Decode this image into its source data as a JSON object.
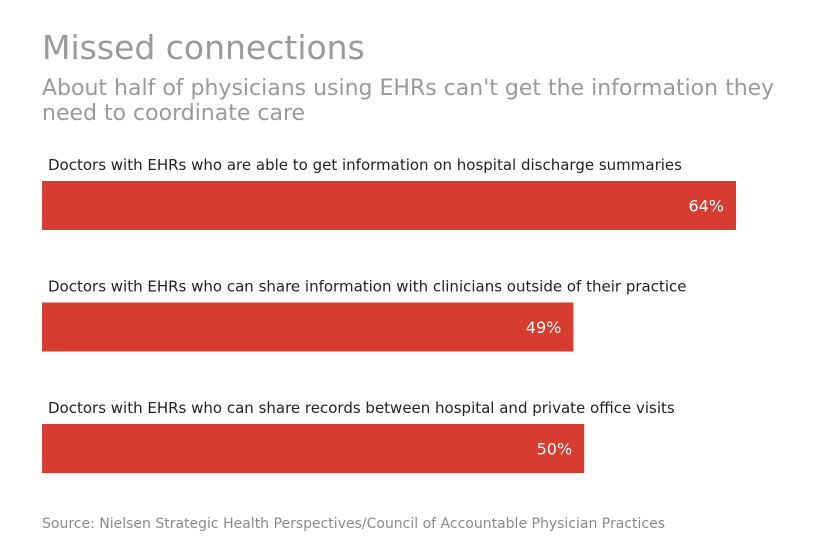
{
  "chart_data": {
    "type": "bar",
    "orientation": "horizontal",
    "title": "Missed connections",
    "subtitle": "About half of physicians using EHRs can't get the information they need to coordinate care",
    "categories": [
      "Doctors with EHRs who are able to get information on hospital discharge summaries",
      "Doctors with EHRs who can share information with clinicians outside of their practice",
      "Doctors with EHRs who can share records between hospital and private office visits"
    ],
    "values": [
      64,
      49,
      50
    ],
    "value_labels": [
      "64%",
      "49%",
      "50%"
    ],
    "unit": "%",
    "xlim": [
      0,
      100
    ],
    "grid": false,
    "bar_color": "#d63c30",
    "source": "Source: Nielsen Strategic Health Perspectives/Council of Accountable Physician Practices"
  }
}
